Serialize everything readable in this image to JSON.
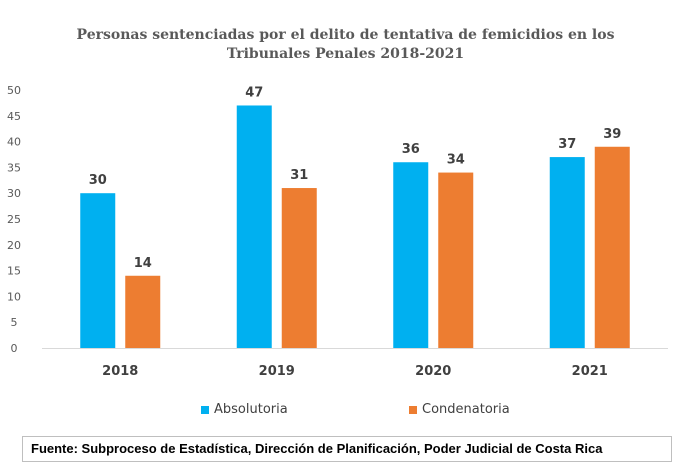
{
  "chart_data": {
    "type": "bar",
    "title": "Personas sentenciadas por el delito de tentativa de femicidios en los Tribunales Penales 2018-2021",
    "title_lines": [
      "Personas sentenciadas por el delito de tentativa de femicidios en los",
      "Tribunales Penales 2018-2021"
    ],
    "categories": [
      "2018",
      "2019",
      "2020",
      "2021"
    ],
    "series": [
      {
        "name": "Absolutoria",
        "color": "#00B0F0",
        "values": [
          30,
          47,
          36,
          37
        ]
      },
      {
        "name": "Condenatoria",
        "color": "#ED7D31",
        "values": [
          14,
          31,
          34,
          39
        ]
      }
    ],
    "xlabel": "",
    "ylabel": "",
    "ylim": [
      0,
      50
    ],
    "yticks": [
      0,
      5,
      10,
      15,
      20,
      25,
      30,
      35,
      40,
      45,
      50
    ],
    "grid": false,
    "legend_position": "bottom",
    "data_labels": true
  },
  "source": "Fuente: Subproceso de Estadística, Dirección de Planificación, Poder Judicial de Costa Rica"
}
